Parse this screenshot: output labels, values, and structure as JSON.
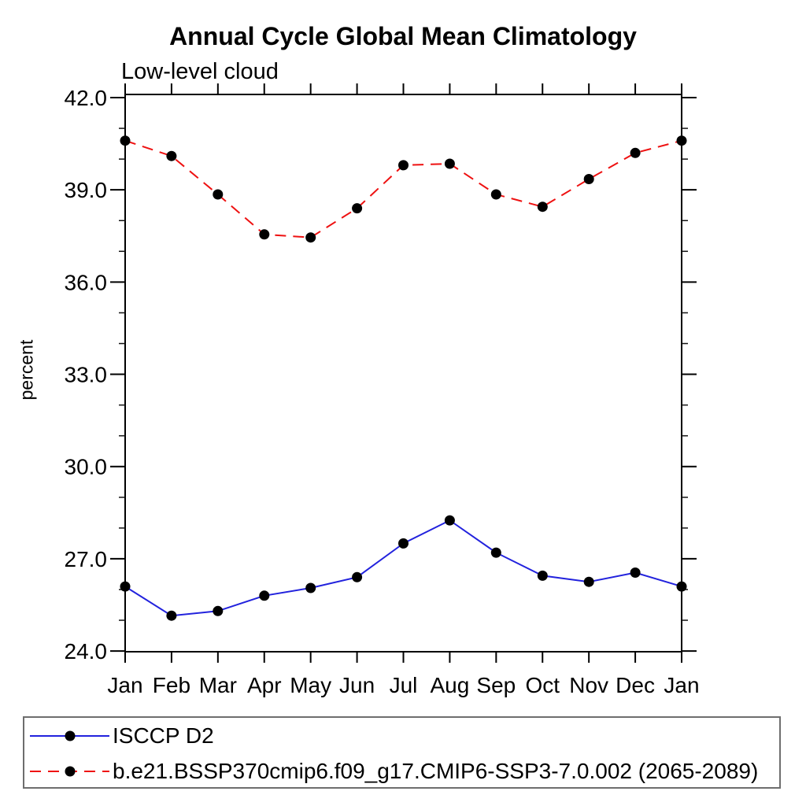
{
  "chart_data": {
    "type": "line",
    "title": "Annual Cycle Global Mean Climatology",
    "subtitle": "Low-level cloud",
    "xlabel": "",
    "ylabel": "percent",
    "categories": [
      "Jan",
      "Feb",
      "Mar",
      "Apr",
      "May",
      "Jun",
      "Jul",
      "Aug",
      "Sep",
      "Oct",
      "Nov",
      "Dec",
      "Jan"
    ],
    "ylim": [
      24.0,
      42.0
    ],
    "ytick_major_interval": 3.0,
    "ytick_minor_interval": 1.0,
    "ytick_labels": [
      "24.0",
      "27.0",
      "30.0",
      "33.0",
      "36.0",
      "39.0",
      "42.0"
    ],
    "grid": false,
    "legend_position": "bottom-left-box",
    "axis_color": "#000000",
    "series": [
      {
        "name": "ISCCP D2",
        "color": "#2222dd",
        "line_style": "solid",
        "marker": "filled-circle",
        "marker_color": "#000000",
        "values": [
          26.1,
          25.15,
          25.3,
          25.8,
          26.05,
          26.4,
          27.5,
          28.25,
          27.2,
          26.45,
          26.25,
          26.55,
          26.1
        ]
      },
      {
        "name": "b.e21.BSSP370cmip6.f09_g17.CMIP6-SSP3-7.0.002 (2065-2089)",
        "color": "#ee1111",
        "line_style": "dashed",
        "marker": "filled-circle",
        "marker_color": "#000000",
        "values": [
          40.6,
          40.1,
          38.85,
          37.55,
          37.45,
          38.4,
          39.8,
          39.85,
          38.85,
          38.45,
          39.35,
          40.2,
          40.6
        ]
      }
    ]
  }
}
